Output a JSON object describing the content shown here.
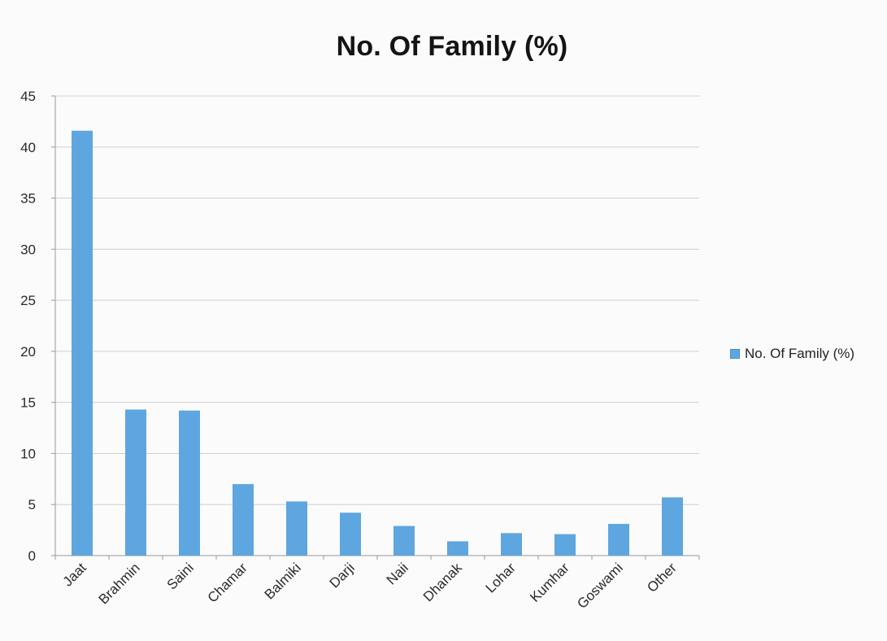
{
  "chart_data": {
    "type": "bar",
    "title": "No. Of Family (%)",
    "xlabel": "",
    "ylabel": "",
    "categories": [
      "Jaat",
      "Brahmin",
      "Saini",
      "Chamar",
      "Balmiki",
      "Darji",
      "Naii",
      "Dhanak",
      "Lohar",
      "Kumhar",
      "Goswami",
      "Other"
    ],
    "series": [
      {
        "name": "No. Of Family (%)",
        "values": [
          41.6,
          14.3,
          14.2,
          7.0,
          5.3,
          4.2,
          2.9,
          1.4,
          2.2,
          2.1,
          3.1,
          5.7
        ]
      }
    ],
    "ylim": [
      0,
      45
    ],
    "yticks": [
      "0",
      "5",
      "10",
      "15",
      "20",
      "25",
      "30",
      "35",
      "40",
      "45"
    ],
    "grid": true,
    "legend_position": "right",
    "bar_color": "#5ea6e0"
  }
}
